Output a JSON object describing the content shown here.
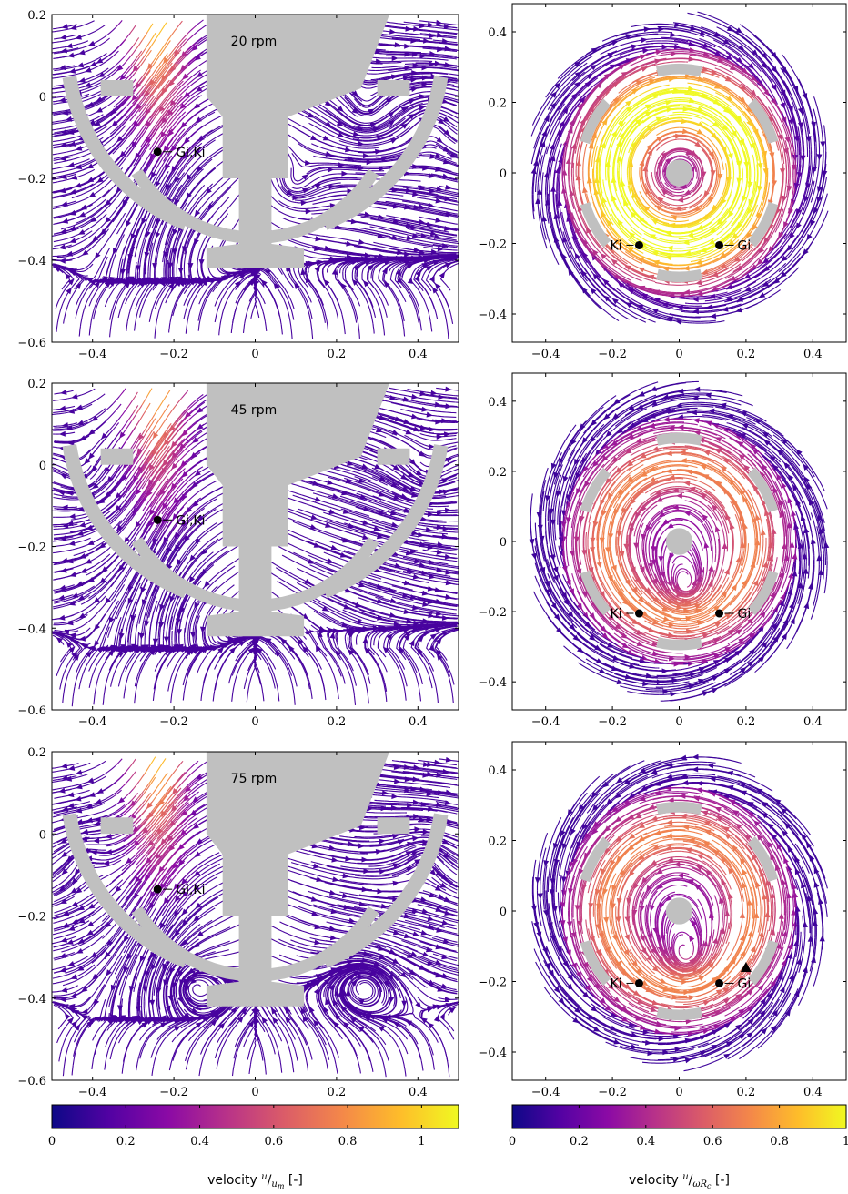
{
  "chart_data": {
    "type": "streamline",
    "colormap": [
      "#0d0887",
      "#5302a3",
      "#8b0aa5",
      "#b83289",
      "#db5c68",
      "#f48849",
      "#febd2a",
      "#f0f921"
    ],
    "line_color_low": "#1a1080",
    "geometry_color": "#c0c0c0",
    "panels": [
      {
        "id": "side-20",
        "view": "side",
        "rpm_label": "20 rpm",
        "xlim": [
          -0.5,
          0.5
        ],
        "ylim": [
          -0.6,
          0.2
        ],
        "xticks": [
          "−0.4",
          "−0.2",
          "0",
          "0.2",
          "0.4"
        ],
        "xtick_values": [
          -0.4,
          -0.2,
          0,
          0.2,
          0.4
        ],
        "yticks": [
          "−0.6",
          "−0.4",
          "−0.2",
          "0",
          "0.2"
        ],
        "ytick_values": [
          -0.6,
          -0.4,
          -0.2,
          0,
          0.2
        ],
        "points": [
          {
            "label": "Gi,Ki",
            "x": -0.24,
            "y": -0.135
          }
        ]
      },
      {
        "id": "top-20",
        "view": "top",
        "xlim": [
          -0.5,
          0.5
        ],
        "ylim": [
          -0.48,
          0.48
        ],
        "xticks": [
          "−0.4",
          "−0.2",
          "0",
          "0.2",
          "0.4"
        ],
        "xtick_values": [
          -0.4,
          -0.2,
          0,
          0.2,
          0.4
        ],
        "yticks": [
          "−0.4",
          "−0.2",
          "0",
          "0.2",
          "0.4"
        ],
        "ytick_values": [
          -0.4,
          -0.2,
          0,
          0.2,
          0.4
        ],
        "points": [
          {
            "label": "Ki",
            "x": -0.12,
            "y": -0.205,
            "side": "left"
          },
          {
            "label": "Gi",
            "x": 0.12,
            "y": -0.205,
            "side": "right"
          }
        ]
      },
      {
        "id": "side-45",
        "view": "side",
        "rpm_label": "45 rpm",
        "xlim": [
          -0.5,
          0.5
        ],
        "ylim": [
          -0.6,
          0.2
        ],
        "xticks": [
          "−0.4",
          "−0.2",
          "0",
          "0.2",
          "0.4"
        ],
        "xtick_values": [
          -0.4,
          -0.2,
          0,
          0.2,
          0.4
        ],
        "yticks": [
          "−0.6",
          "−0.4",
          "−0.2",
          "0",
          "0.2"
        ],
        "ytick_values": [
          -0.6,
          -0.4,
          -0.2,
          0,
          0.2
        ],
        "points": [
          {
            "label": "Gi,Ki",
            "x": -0.24,
            "y": -0.135
          }
        ]
      },
      {
        "id": "top-45",
        "view": "top",
        "xlim": [
          -0.5,
          0.5
        ],
        "ylim": [
          -0.48,
          0.48
        ],
        "xticks": [
          "−0.4",
          "−0.2",
          "0",
          "0.2",
          "0.4"
        ],
        "xtick_values": [
          -0.4,
          -0.2,
          0,
          0.2,
          0.4
        ],
        "yticks": [
          "−0.4",
          "−0.2",
          "0",
          "0.2",
          "0.4"
        ],
        "ytick_values": [
          -0.4,
          -0.2,
          0,
          0.2,
          0.4
        ],
        "points": [
          {
            "label": "Ki",
            "x": -0.12,
            "y": -0.205,
            "side": "left"
          },
          {
            "label": "Gi",
            "x": 0.12,
            "y": -0.205,
            "side": "right"
          }
        ]
      },
      {
        "id": "side-75",
        "view": "side",
        "rpm_label": "75 rpm",
        "xlim": [
          -0.5,
          0.5
        ],
        "ylim": [
          -0.6,
          0.2
        ],
        "xticks": [
          "−0.4",
          "−0.2",
          "0",
          "0.2",
          "0.4"
        ],
        "xtick_values": [
          -0.4,
          -0.2,
          0,
          0.2,
          0.4
        ],
        "yticks": [
          "−0.6",
          "−0.4",
          "−0.2",
          "0",
          "0.2"
        ],
        "ytick_values": [
          -0.6,
          -0.4,
          -0.2,
          0,
          0.2
        ],
        "points": [
          {
            "label": "Gi,Ki",
            "x": -0.24,
            "y": -0.135
          }
        ]
      },
      {
        "id": "top-75",
        "view": "top",
        "xlim": [
          -0.5,
          0.5
        ],
        "ylim": [
          -0.48,
          0.48
        ],
        "xticks": [
          "−0.4",
          "−0.2",
          "0",
          "0.2",
          "0.4"
        ],
        "xtick_values": [
          -0.4,
          -0.2,
          0,
          0.2,
          0.4
        ],
        "yticks": [
          "−0.4",
          "−0.2",
          "0",
          "0.2",
          "0.4"
        ],
        "ytick_values": [
          -0.4,
          -0.2,
          0,
          0.2,
          0.4
        ],
        "points": [
          {
            "label": "Ki",
            "x": -0.12,
            "y": -0.205,
            "side": "left"
          },
          {
            "label": "Gi",
            "x": 0.12,
            "y": -0.205,
            "side": "right"
          }
        ],
        "triangle_marker": {
          "x": 0.2,
          "y": -0.16
        }
      }
    ],
    "colorbars": [
      {
        "id": "colorbar-left",
        "range": [
          0,
          1.1
        ],
        "ticks": [
          "0",
          "0.2",
          "0.4",
          "0.6",
          "0.8",
          "1"
        ],
        "tick_values": [
          0,
          0.2,
          0.4,
          0.6,
          0.8,
          1
        ],
        "label_prefix": "velocity ",
        "label_num": "u",
        "label_den": "u",
        "label_den_sub": "m",
        "label_unit": " [-]"
      },
      {
        "id": "colorbar-right",
        "range": [
          0,
          1
        ],
        "ticks": [
          "0",
          "0.2",
          "0.4",
          "0.6",
          "0.8",
          "1"
        ],
        "tick_values": [
          0,
          0.2,
          0.4,
          0.6,
          0.8,
          1
        ],
        "label_prefix": "velocity ",
        "label_num": "u",
        "label_den": "ωR",
        "label_den_sub": "c",
        "label_unit": " [-]"
      }
    ]
  }
}
